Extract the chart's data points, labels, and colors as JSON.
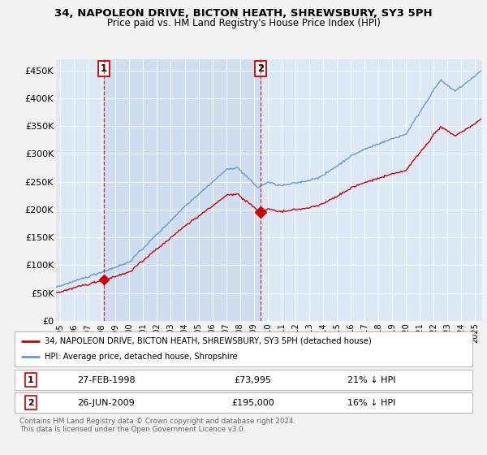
{
  "title": "34, NAPOLEON DRIVE, BICTON HEATH, SHREWSBURY, SY3 5PH",
  "subtitle": "Price paid vs. HM Land Registry's House Price Index (HPI)",
  "ylabel_ticks": [
    "£0",
    "£50K",
    "£100K",
    "£150K",
    "£200K",
    "£250K",
    "£300K",
    "£350K",
    "£400K",
    "£450K"
  ],
  "ytick_values": [
    0,
    50000,
    100000,
    150000,
    200000,
    250000,
    300000,
    350000,
    400000,
    450000
  ],
  "ylim": [
    0,
    470000
  ],
  "xlim_start": 1994.7,
  "xlim_end": 2025.5,
  "plot_bg_color": "#dce8f5",
  "shade_color": "#c5d8ee",
  "grid_color": "#ffffff",
  "red_line_color": "#cc0000",
  "blue_line_color": "#6699cc",
  "marker1_date": 1998.15,
  "marker1_value": 73995,
  "marker2_date": 2009.48,
  "marker2_value": 195000,
  "legend_line1": "34, NAPOLEON DRIVE, BICTON HEATH, SHREWSBURY, SY3 5PH (detached house)",
  "legend_line2": "HPI: Average price, detached house, Shropshire",
  "table_row1_num": "1",
  "table_row1_date": "27-FEB-1998",
  "table_row1_price": "£73,995",
  "table_row1_hpi": "21% ↓ HPI",
  "table_row2_num": "2",
  "table_row2_date": "26-JUN-2009",
  "table_row2_price": "£195,000",
  "table_row2_hpi": "16% ↓ HPI",
  "footer": "Contains HM Land Registry data © Crown copyright and database right 2024.\nThis data is licensed under the Open Government Licence v3.0.",
  "xtick_years": [
    1995,
    1996,
    1997,
    1998,
    1999,
    2000,
    2001,
    2002,
    2003,
    2004,
    2005,
    2006,
    2007,
    2008,
    2009,
    2010,
    2011,
    2012,
    2013,
    2014,
    2015,
    2016,
    2017,
    2018,
    2019,
    2020,
    2021,
    2022,
    2023,
    2024,
    2025
  ]
}
